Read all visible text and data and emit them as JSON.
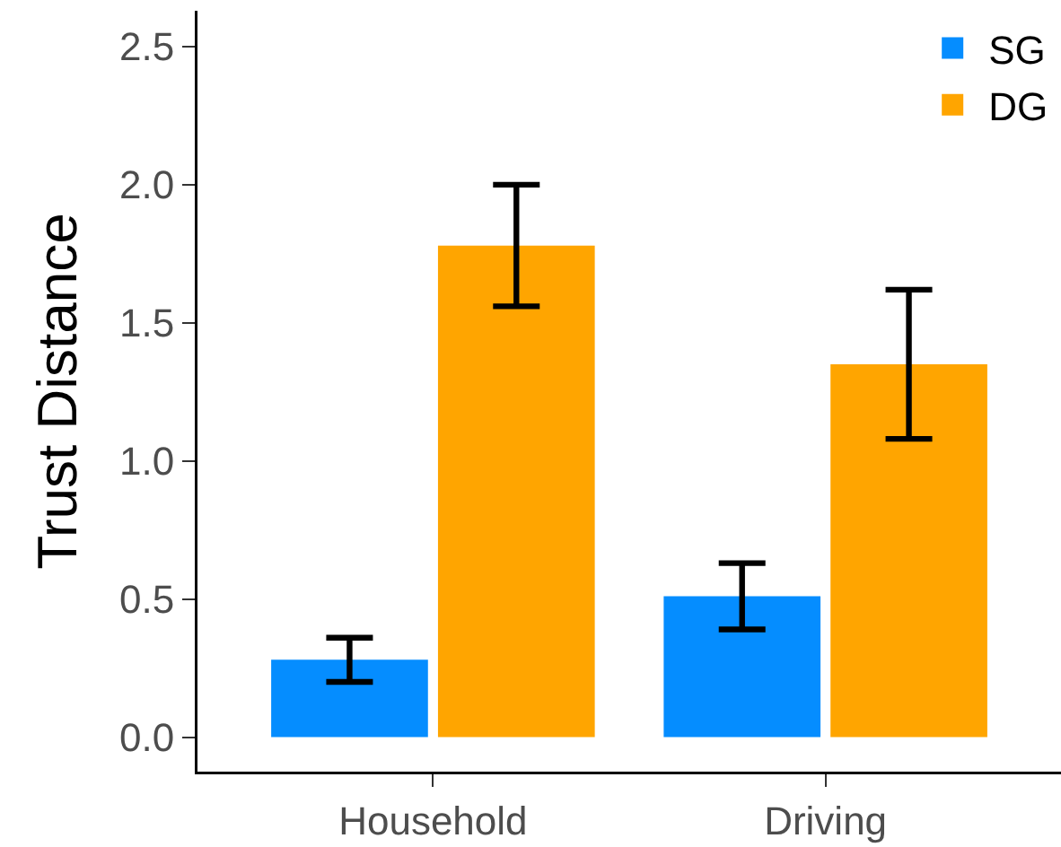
{
  "chart_data": {
    "type": "bar",
    "ylabel": "Trust Distance",
    "categories": [
      "Household",
      "Driving"
    ],
    "series": [
      {
        "name": "SG",
        "color": "#058dff",
        "values": [
          0.28,
          0.51
        ],
        "errors": [
          0.08,
          0.12
        ]
      },
      {
        "name": "DG",
        "color": "#ffa500",
        "values": [
          1.78,
          1.35
        ],
        "errors": [
          0.22,
          0.27
        ]
      }
    ],
    "ylim": [
      -0.125,
      2.63
    ],
    "yticks": [
      {
        "value": 0,
        "label": "0.0"
      },
      0.5,
      {
        "value": 1,
        "label": "1.0"
      },
      1.5,
      {
        "value": 2,
        "label": "2.0"
      },
      2.5
    ],
    "legend": "top right"
  }
}
